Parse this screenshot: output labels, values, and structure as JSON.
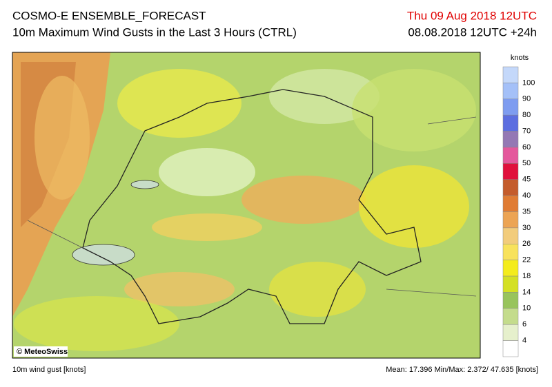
{
  "header": {
    "title": "COSMO-E ENSEMBLE_FORECAST",
    "subtitle": "10m Maximum Wind Gusts in the Last 3 Hours (CTRL)",
    "valid_time": "Thu 09 Aug 2018 12UTC",
    "run_time": "08.08.2018 12UTC +24h"
  },
  "legend": {
    "unit": "knots",
    "levels": [
      100,
      90,
      80,
      70,
      60,
      50,
      45,
      40,
      35,
      30,
      26,
      22,
      18,
      14,
      10,
      6,
      4
    ],
    "colors": [
      "#c4d8fa",
      "#a4c0f8",
      "#7e9cf0",
      "#5c6ee0",
      "#9478b4",
      "#e4589c",
      "#e0103c",
      "#c45c2c",
      "#e07c34",
      "#eca454",
      "#f2cc7c",
      "#f8e25c",
      "#f4ec1c",
      "#d4e024",
      "#98c45c",
      "#c4dc8c",
      "#e6f0cc",
      "#ffffff"
    ]
  },
  "map": {
    "credit": "© MeteoSwiss"
  },
  "footer": {
    "variable": "10m wind gust [knots]",
    "stats": "Mean:  17.396 Min/Max:  2.372/ 47.635 [knots]"
  }
}
